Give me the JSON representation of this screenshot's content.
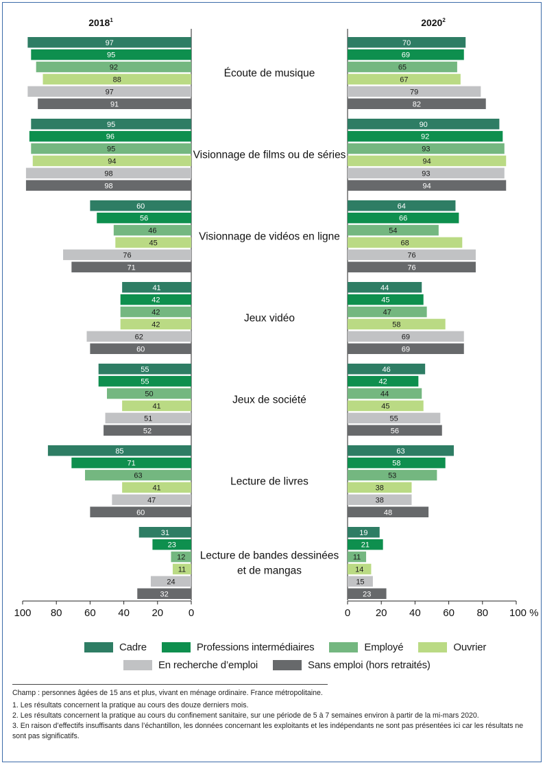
{
  "colors": {
    "Cadre": "#2e7d64",
    "Professions intermédiaires": "#0e8f4e",
    "Employé": "#74b780",
    "Ouvrier": "#bada84",
    "En recherche d'emploi": "#c1c2c4",
    "Sans emploi (hors retraités)": "#67696b",
    "frame": "#3b6aa8"
  },
  "chart_data": {
    "type": "bar",
    "orientation": "horizontal-butterfly",
    "panels": [
      {
        "title": "2018",
        "superscript": "1"
      },
      {
        "title": "2020",
        "superscript": "2"
      }
    ],
    "categories": [
      "Écoute de musique",
      "Visionnage de films ou de séries",
      "Visionnage de vidéos en ligne",
      "Jeux vidéo",
      "Jeux de société",
      "Lecture de livres",
      "Lecture de bandes dessinées\net de mangas"
    ],
    "series": [
      {
        "name": "Cadre",
        "values_2018": [
          97,
          95,
          60,
          41,
          55,
          85,
          31
        ],
        "values_2020": [
          70,
          90,
          64,
          44,
          46,
          63,
          19
        ]
      },
      {
        "name": "Professions intermédiaires",
        "values_2018": [
          95,
          96,
          56,
          42,
          55,
          71,
          23
        ],
        "values_2020": [
          69,
          92,
          66,
          45,
          42,
          58,
          21
        ]
      },
      {
        "name": "Employé",
        "values_2018": [
          92,
          95,
          46,
          42,
          50,
          63,
          12
        ],
        "values_2020": [
          65,
          93,
          54,
          47,
          44,
          53,
          11
        ]
      },
      {
        "name": "Ouvrier",
        "values_2018": [
          88,
          94,
          45,
          42,
          41,
          41,
          11
        ],
        "values_2020": [
          67,
          94,
          68,
          58,
          45,
          38,
          14
        ]
      },
      {
        "name": "En recherche d’emploi",
        "values_2018": [
          97,
          98,
          76,
          62,
          51,
          47,
          24
        ],
        "values_2020": [
          79,
          93,
          76,
          69,
          55,
          38,
          15
        ]
      },
      {
        "name": "Sans emploi (hors retraités)",
        "values_2018": [
          91,
          98,
          71,
          60,
          52,
          60,
          32
        ],
        "values_2020": [
          82,
          94,
          76,
          69,
          56,
          48,
          23
        ]
      }
    ],
    "xlim": [
      0,
      100
    ],
    "left_ticks": [
      "100",
      "80",
      "60",
      "40",
      "20",
      "0"
    ],
    "right_ticks": [
      "0",
      "20",
      "40",
      "60",
      "80",
      "100 %"
    ],
    "grid": false,
    "legend_placement": "bottom"
  },
  "legend": {
    "row1": [
      "Cadre",
      "Professions intermédiaires",
      "Employé",
      "Ouvrier"
    ],
    "row2": [
      "En recherche d’emploi",
      "Sans emploi (hors retraités)"
    ]
  },
  "notes": {
    "champ": "Champ : personnes âgées de 15 ans et plus, vivant en ménage ordinaire. France métropolitaine.",
    "n1": "1.   Les résultats concernent la pratique au cours des douze derniers mois.",
    "n2": "2.   Les résultats concernent la pratique au cours du confinement sanitaire, sur une période de 5 à 7 semaines environ à partir de la mi-mars 2020.",
    "n3": "3.   En raison d’effectifs insuffisants dans l’échantillon, les données concernant les exploitants et les indépendants ne sont pas présentées ici car les résultats ne sont pas significatifs."
  }
}
